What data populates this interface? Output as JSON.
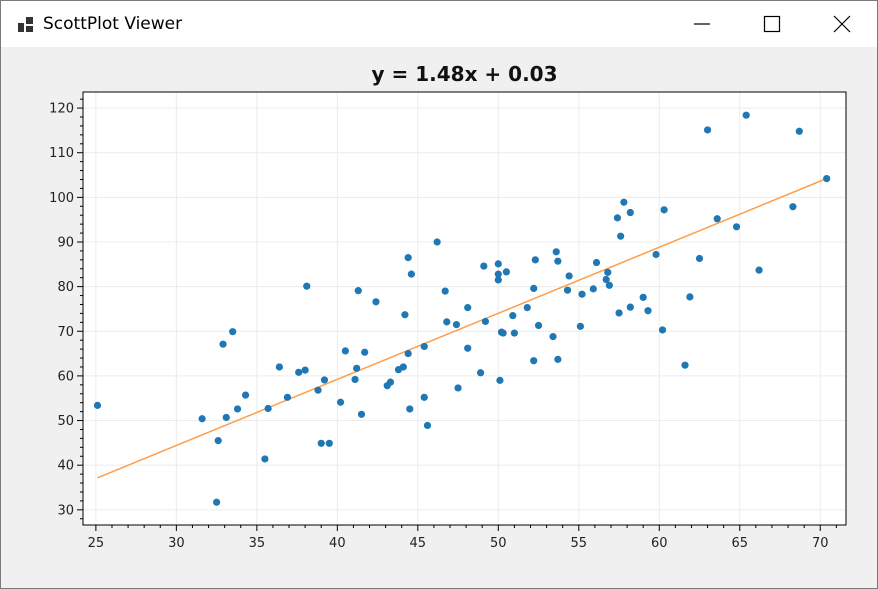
{
  "window": {
    "title": "ScottPlot Viewer",
    "icon": "scottplot-app-icon",
    "buttons": [
      "minimize-icon",
      "maximize-icon",
      "close-icon"
    ]
  },
  "colors": {
    "marker": "#1f77b4",
    "fit_line": "#ff9e4a",
    "grid": "#ececec",
    "plot_bg": "#ffffff",
    "frame_bg": "#f0f0f0"
  },
  "chart_data": {
    "type": "scatter",
    "title": "y = 1.48x + 0.03",
    "xlabel": "",
    "ylabel": "",
    "xlim": [
      24.2,
      71.6
    ],
    "ylim": [
      26.6,
      123.6
    ],
    "xticks": [
      25,
      30,
      35,
      40,
      45,
      50,
      55,
      60,
      65,
      70
    ],
    "yticks": [
      30,
      40,
      50,
      60,
      70,
      80,
      90,
      100,
      110,
      120
    ],
    "grid": true,
    "legend": "none",
    "series": [
      {
        "points": [
          [
            25.1,
            53.4
          ],
          [
            31.6,
            50.4
          ],
          [
            32.5,
            31.7
          ],
          [
            32.6,
            45.5
          ],
          [
            32.9,
            67.1
          ],
          [
            33.1,
            50.7
          ],
          [
            33.5,
            69.9
          ],
          [
            33.8,
            52.6
          ],
          [
            34.3,
            55.7
          ],
          [
            35.5,
            41.4
          ],
          [
            35.7,
            52.7
          ],
          [
            36.4,
            62.0
          ],
          [
            36.9,
            55.2
          ],
          [
            37.6,
            60.8
          ],
          [
            38.0,
            61.3
          ],
          [
            38.1,
            80.1
          ],
          [
            38.8,
            56.8
          ],
          [
            39.0,
            44.9
          ],
          [
            39.2,
            59.1
          ],
          [
            39.5,
            44.9
          ],
          [
            40.2,
            54.1
          ],
          [
            40.5,
            65.6
          ],
          [
            41.1,
            59.2
          ],
          [
            41.2,
            61.7
          ],
          [
            41.3,
            79.1
          ],
          [
            41.5,
            51.4
          ],
          [
            41.7,
            65.3
          ],
          [
            42.4,
            76.6
          ],
          [
            43.1,
            57.8
          ],
          [
            43.3,
            58.6
          ],
          [
            43.8,
            61.4
          ],
          [
            44.1,
            62.0
          ],
          [
            44.2,
            73.7
          ],
          [
            44.4,
            65.0
          ],
          [
            44.4,
            86.5
          ],
          [
            44.5,
            52.6
          ],
          [
            44.6,
            82.8
          ],
          [
            45.4,
            55.2
          ],
          [
            45.4,
            66.6
          ],
          [
            45.6,
            48.9
          ],
          [
            46.2,
            90.0
          ],
          [
            46.7,
            79.0
          ],
          [
            46.8,
            72.1
          ],
          [
            47.4,
            71.5
          ],
          [
            47.5,
            57.3
          ],
          [
            48.1,
            66.2
          ],
          [
            48.1,
            75.3
          ],
          [
            48.9,
            60.7
          ],
          [
            49.1,
            84.6
          ],
          [
            49.2,
            72.2
          ],
          [
            50.0,
            81.5
          ],
          [
            50.0,
            82.8
          ],
          [
            50.0,
            85.1
          ],
          [
            50.1,
            59.0
          ],
          [
            50.2,
            69.8
          ],
          [
            50.3,
            69.6
          ],
          [
            50.5,
            83.3
          ],
          [
            50.9,
            73.5
          ],
          [
            51.0,
            69.6
          ],
          [
            51.8,
            75.3
          ],
          [
            52.2,
            79.6
          ],
          [
            52.2,
            63.4
          ],
          [
            52.3,
            86.0
          ],
          [
            52.5,
            71.3
          ],
          [
            53.4,
            68.8
          ],
          [
            53.6,
            87.8
          ],
          [
            53.7,
            63.7
          ],
          [
            53.7,
            85.7
          ],
          [
            54.3,
            79.2
          ],
          [
            54.4,
            82.4
          ],
          [
            55.1,
            71.1
          ],
          [
            55.2,
            78.3
          ],
          [
            55.9,
            79.5
          ],
          [
            56.1,
            85.4
          ],
          [
            56.7,
            81.6
          ],
          [
            56.8,
            83.2
          ],
          [
            56.9,
            80.3
          ],
          [
            57.4,
            95.4
          ],
          [
            57.5,
            74.1
          ],
          [
            57.6,
            91.3
          ],
          [
            57.8,
            98.9
          ],
          [
            58.2,
            96.6
          ],
          [
            58.2,
            75.4
          ],
          [
            59.0,
            77.6
          ],
          [
            59.3,
            74.6
          ],
          [
            59.8,
            87.2
          ],
          [
            60.2,
            70.3
          ],
          [
            60.3,
            97.2
          ],
          [
            61.6,
            62.4
          ],
          [
            61.9,
            77.7
          ],
          [
            62.5,
            86.3
          ],
          [
            63.0,
            115.1
          ],
          [
            63.6,
            95.2
          ],
          [
            64.8,
            93.4
          ],
          [
            65.4,
            118.4
          ],
          [
            66.2,
            83.7
          ],
          [
            68.3,
            97.9
          ],
          [
            68.7,
            114.8
          ],
          [
            70.4,
            104.2
          ]
        ]
      }
    ],
    "fit": {
      "slope": 1.48,
      "intercept": 0.03,
      "x_range": [
        25.1,
        70.4
      ]
    }
  }
}
